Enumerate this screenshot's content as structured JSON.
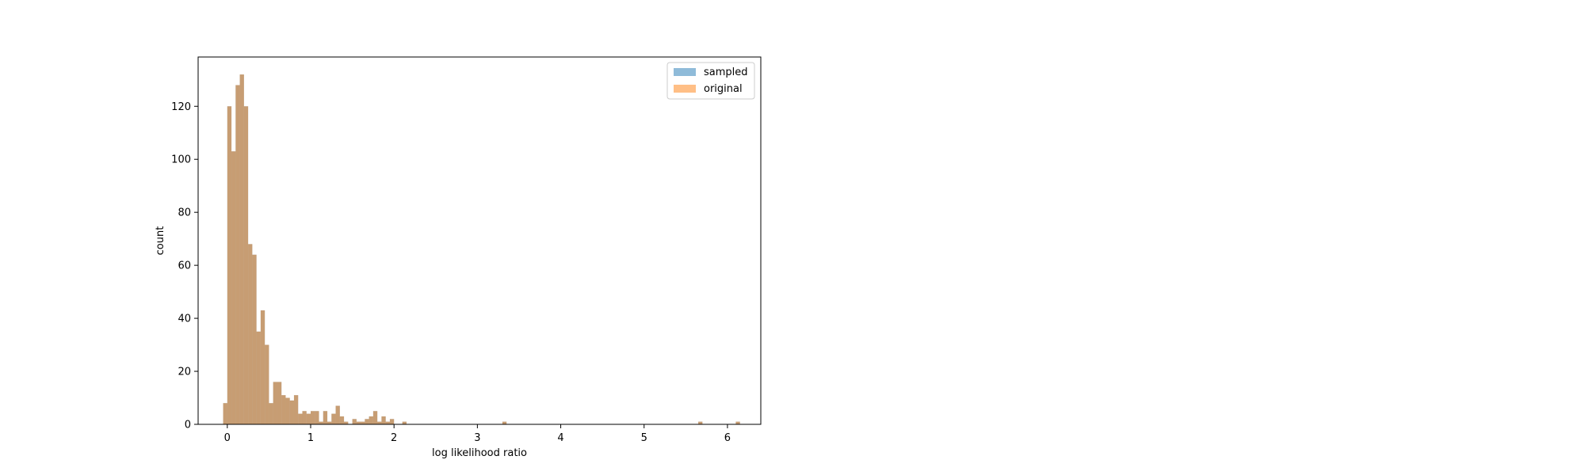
{
  "chart_data": {
    "type": "bar",
    "title": "",
    "xlabel": "log likelihood ratio",
    "ylabel": "count",
    "xlim": [
      -0.35,
      6.4
    ],
    "ylim": [
      0,
      138.6
    ],
    "xticks": [
      0,
      1,
      2,
      3,
      4,
      5,
      6
    ],
    "yticks": [
      0,
      20,
      40,
      60,
      80,
      100,
      120
    ],
    "grid": false,
    "legend_position": "top-right",
    "bin_width": 0.05,
    "series": [
      {
        "name": "sampled",
        "color": "#1f77b4",
        "opacity": 0.5,
        "bins": [
          [
            -0.05,
            8
          ],
          [
            0.0,
            120
          ],
          [
            0.05,
            103
          ],
          [
            0.1,
            128
          ],
          [
            0.15,
            132
          ],
          [
            0.2,
            120
          ],
          [
            0.25,
            68
          ],
          [
            0.3,
            64
          ],
          [
            0.35,
            35
          ],
          [
            0.4,
            43
          ],
          [
            0.45,
            30
          ],
          [
            0.5,
            8
          ],
          [
            0.55,
            16
          ],
          [
            0.6,
            16
          ],
          [
            0.65,
            11
          ],
          [
            0.7,
            10
          ],
          [
            0.75,
            9
          ],
          [
            0.8,
            11
          ],
          [
            0.85,
            4
          ],
          [
            0.9,
            5
          ],
          [
            0.95,
            4
          ],
          [
            1.0,
            5
          ],
          [
            1.05,
            5
          ],
          [
            1.1,
            1
          ],
          [
            1.15,
            5
          ],
          [
            1.2,
            1
          ],
          [
            1.25,
            4
          ],
          [
            1.3,
            7
          ],
          [
            1.35,
            3
          ],
          [
            1.4,
            1
          ],
          [
            1.5,
            2
          ],
          [
            1.55,
            1
          ],
          [
            1.6,
            1
          ],
          [
            1.65,
            2
          ],
          [
            1.7,
            3
          ],
          [
            1.75,
            5
          ],
          [
            1.8,
            1
          ],
          [
            1.85,
            3
          ],
          [
            1.9,
            1
          ],
          [
            1.95,
            2
          ],
          [
            2.1,
            1
          ],
          [
            3.3,
            1
          ],
          [
            5.65,
            1
          ],
          [
            6.1,
            1
          ]
        ]
      },
      {
        "name": "original",
        "color": "#ff7f0e",
        "opacity": 0.5,
        "bins": [
          [
            -0.05,
            8
          ],
          [
            0.0,
            120
          ],
          [
            0.05,
            103
          ],
          [
            0.1,
            128
          ],
          [
            0.15,
            132
          ],
          [
            0.2,
            120
          ],
          [
            0.25,
            68
          ],
          [
            0.3,
            64
          ],
          [
            0.35,
            35
          ],
          [
            0.4,
            43
          ],
          [
            0.45,
            30
          ],
          [
            0.5,
            8
          ],
          [
            0.55,
            16
          ],
          [
            0.6,
            16
          ],
          [
            0.65,
            11
          ],
          [
            0.7,
            10
          ],
          [
            0.75,
            9
          ],
          [
            0.8,
            11
          ],
          [
            0.85,
            4
          ],
          [
            0.9,
            5
          ],
          [
            0.95,
            4
          ],
          [
            1.0,
            5
          ],
          [
            1.05,
            5
          ],
          [
            1.1,
            1
          ],
          [
            1.15,
            5
          ],
          [
            1.2,
            1
          ],
          [
            1.25,
            4
          ],
          [
            1.3,
            7
          ],
          [
            1.35,
            3
          ],
          [
            1.4,
            1
          ],
          [
            1.5,
            2
          ],
          [
            1.55,
            1
          ],
          [
            1.6,
            1
          ],
          [
            1.65,
            2
          ],
          [
            1.7,
            3
          ],
          [
            1.75,
            5
          ],
          [
            1.8,
            1
          ],
          [
            1.85,
            3
          ],
          [
            1.9,
            1
          ],
          [
            1.95,
            2
          ],
          [
            2.1,
            1
          ],
          [
            3.3,
            1
          ],
          [
            5.65,
            1
          ],
          [
            6.1,
            1
          ]
        ]
      }
    ]
  }
}
